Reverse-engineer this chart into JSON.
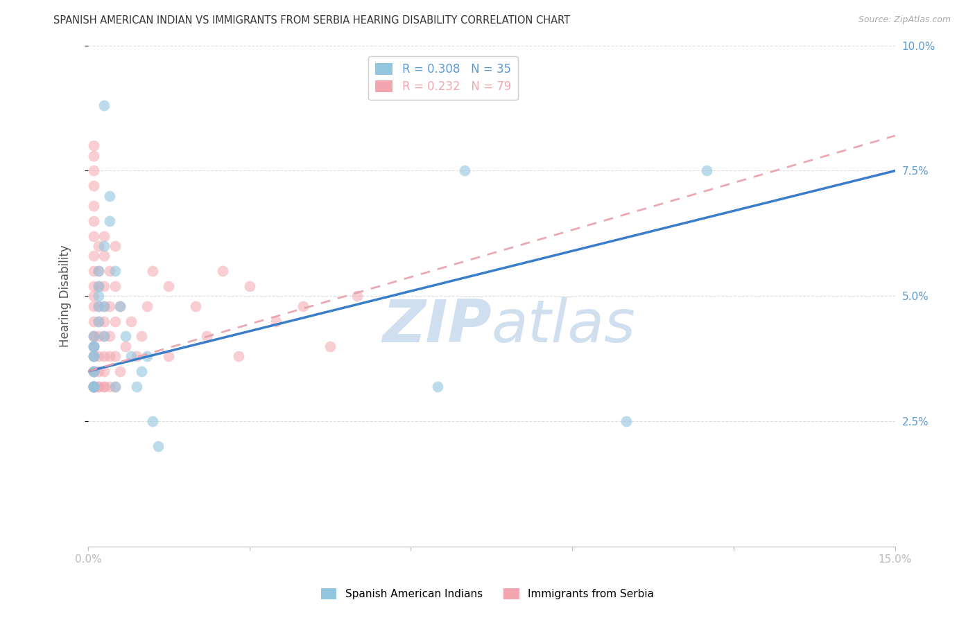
{
  "title": "SPANISH AMERICAN INDIAN VS IMMIGRANTS FROM SERBIA HEARING DISABILITY CORRELATION CHART",
  "source": "Source: ZipAtlas.com",
  "ylabel": "Hearing Disability",
  "xlim": [
    0.0,
    0.15
  ],
  "ylim": [
    0.0,
    0.1
  ],
  "xticks": [
    0.0,
    0.03,
    0.06,
    0.09,
    0.12,
    0.15
  ],
  "xtick_labels": [
    "0.0%",
    "",
    "",
    "",
    "",
    "15.0%"
  ],
  "ytick_labels_right": [
    "2.5%",
    "5.0%",
    "7.5%",
    "10.0%"
  ],
  "yticks_right": [
    0.025,
    0.05,
    0.075,
    0.1
  ],
  "blue_R": 0.308,
  "blue_N": 35,
  "pink_R": 0.232,
  "pink_N": 79,
  "blue_color": "#92c5de",
  "pink_color": "#f4a6b0",
  "blue_line_color": "#3a7dc9",
  "pink_line_color": "#cccccc",
  "pink_line_color2": "#e8a0aa",
  "axis_color": "#5b9bd5",
  "watermark_color": "#d0dff0",
  "blue_line_y0": 0.035,
  "blue_line_y1": 0.075,
  "pink_line_y0": 0.035,
  "pink_line_y1": 0.082,
  "blue_scatter_x": [
    0.001,
    0.001,
    0.001,
    0.001,
    0.001,
    0.001,
    0.001,
    0.001,
    0.001,
    0.001,
    0.002,
    0.002,
    0.002,
    0.002,
    0.002,
    0.003,
    0.003,
    0.003,
    0.004,
    0.004,
    0.005,
    0.005,
    0.006,
    0.007,
    0.008,
    0.009,
    0.01,
    0.011,
    0.012,
    0.013,
    0.065,
    0.07,
    0.1,
    0.115,
    0.003
  ],
  "blue_scatter_y": [
    0.032,
    0.032,
    0.032,
    0.035,
    0.035,
    0.038,
    0.038,
    0.04,
    0.04,
    0.042,
    0.045,
    0.048,
    0.05,
    0.052,
    0.055,
    0.042,
    0.048,
    0.06,
    0.065,
    0.07,
    0.032,
    0.055,
    0.048,
    0.042,
    0.038,
    0.032,
    0.035,
    0.038,
    0.025,
    0.02,
    0.032,
    0.075,
    0.025,
    0.075,
    0.088
  ],
  "pink_scatter_x": [
    0.001,
    0.001,
    0.001,
    0.001,
    0.001,
    0.001,
    0.001,
    0.001,
    0.001,
    0.001,
    0.001,
    0.001,
    0.001,
    0.001,
    0.001,
    0.001,
    0.001,
    0.001,
    0.001,
    0.001,
    0.001,
    0.001,
    0.001,
    0.001,
    0.001,
    0.001,
    0.001,
    0.001,
    0.001,
    0.001,
    0.002,
    0.002,
    0.002,
    0.002,
    0.002,
    0.002,
    0.002,
    0.002,
    0.002,
    0.002,
    0.003,
    0.003,
    0.003,
    0.003,
    0.003,
    0.003,
    0.003,
    0.003,
    0.003,
    0.003,
    0.004,
    0.004,
    0.004,
    0.004,
    0.004,
    0.005,
    0.005,
    0.005,
    0.005,
    0.005,
    0.006,
    0.006,
    0.007,
    0.008,
    0.009,
    0.01,
    0.011,
    0.012,
    0.015,
    0.015,
    0.02,
    0.022,
    0.025,
    0.028,
    0.03,
    0.035,
    0.04,
    0.045,
    0.05
  ],
  "pink_scatter_y": [
    0.032,
    0.032,
    0.032,
    0.032,
    0.032,
    0.032,
    0.032,
    0.032,
    0.032,
    0.035,
    0.035,
    0.038,
    0.038,
    0.04,
    0.04,
    0.042,
    0.042,
    0.045,
    0.048,
    0.05,
    0.052,
    0.055,
    0.058,
    0.062,
    0.065,
    0.068,
    0.072,
    0.075,
    0.078,
    0.08,
    0.032,
    0.032,
    0.035,
    0.038,
    0.042,
    0.045,
    0.048,
    0.052,
    0.055,
    0.06,
    0.032,
    0.032,
    0.035,
    0.038,
    0.042,
    0.045,
    0.048,
    0.052,
    0.058,
    0.062,
    0.032,
    0.038,
    0.042,
    0.048,
    0.055,
    0.032,
    0.038,
    0.045,
    0.052,
    0.06,
    0.035,
    0.048,
    0.04,
    0.045,
    0.038,
    0.042,
    0.048,
    0.055,
    0.038,
    0.052,
    0.048,
    0.042,
    0.055,
    0.038,
    0.052,
    0.045,
    0.048,
    0.04,
    0.05
  ]
}
